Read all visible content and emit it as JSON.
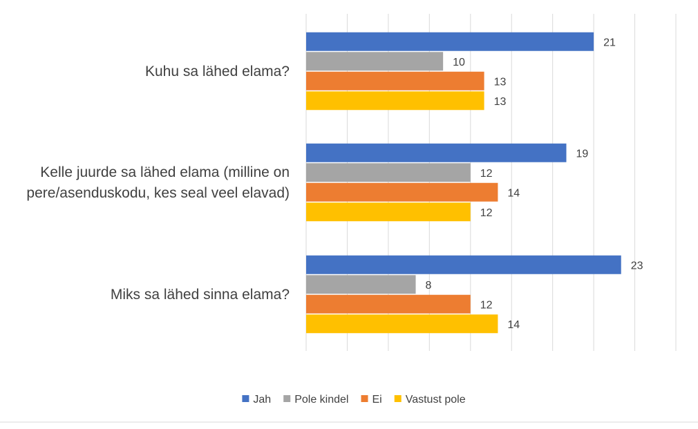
{
  "chart_data": {
    "type": "bar",
    "orientation": "horizontal",
    "categories": [
      [
        "Kuhu sa lähed elama?"
      ],
      [
        "Kelle juurde sa lähed elama (milline on",
        "pere/asenduskodu, kes seal veel elavad)"
      ],
      [
        "Miks sa lähed sinna elama?"
      ]
    ],
    "series": [
      {
        "name": "Jah",
        "color": "#4472C4",
        "values": [
          21,
          19,
          23
        ]
      },
      {
        "name": "Pole kindel",
        "color": "#A5A5A5",
        "values": [
          10,
          12,
          8
        ]
      },
      {
        "name": "Ei",
        "color": "#ED7D31",
        "values": [
          13,
          14,
          12
        ]
      },
      {
        "name": "Vastust pole",
        "color": "#FFC000",
        "values": [
          13,
          12,
          14
        ]
      }
    ],
    "xlim": [
      0,
      27
    ],
    "grid_step": 3,
    "grid": true,
    "data_labels": true,
    "legend_position": "bottom"
  }
}
